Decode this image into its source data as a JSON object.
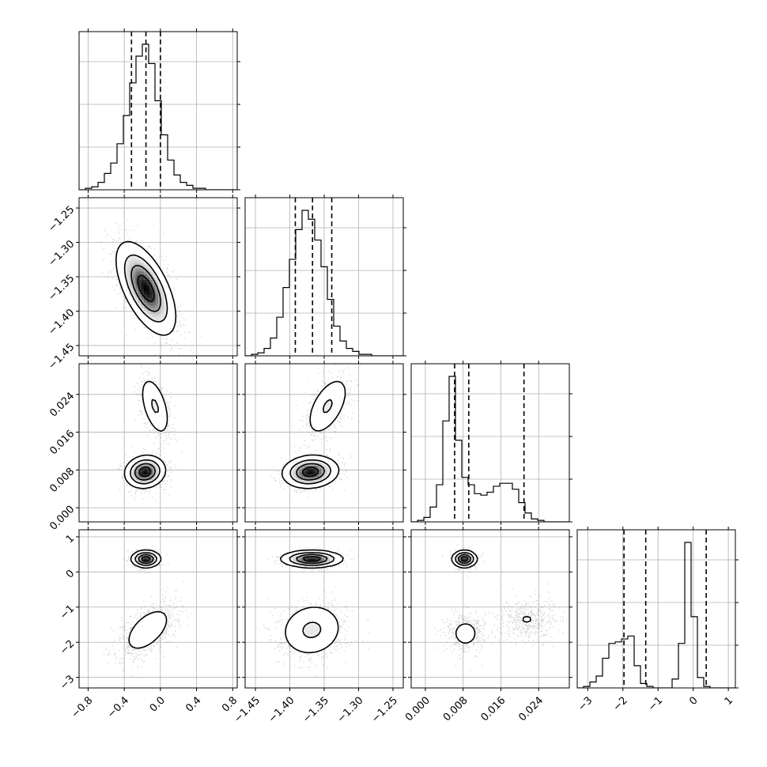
{
  "chart_data": {
    "type": "corner",
    "grid": true,
    "colors": {
      "hist": "#000000",
      "scatter": "#000000",
      "contour": "#000000",
      "density": "#000000",
      "grid": "#b0b0b0"
    },
    "parameters": [
      {
        "range": [
          -0.9,
          0.85
        ],
        "ticks": [
          -0.8,
          -0.4,
          0.0,
          0.4,
          0.8
        ],
        "tick_labels": [
          "−0.8",
          "−0.4",
          "0.0",
          "0.4",
          "0.8"
        ],
        "quantiles": [
          -0.32,
          -0.16,
          0.0
        ]
      },
      {
        "range": [
          -1.465,
          -1.235
        ],
        "ticks": [
          -1.45,
          -1.4,
          -1.35,
          -1.3,
          -1.25
        ],
        "tick_labels": [
          "−1.45",
          "−1.40",
          "−1.35",
          "−1.30",
          "−1.25"
        ],
        "quantiles": [
          -1.392,
          -1.367,
          -1.339
        ]
      },
      {
        "range": [
          -0.003,
          0.0305
        ],
        "ticks": [
          0.0,
          0.008,
          0.016,
          0.024
        ],
        "tick_labels": [
          "0.000",
          "0.008",
          "0.016",
          "0.024"
        ],
        "quantiles": [
          0.0062,
          0.0092,
          0.0209
        ]
      },
      {
        "range": [
          -3.3,
          1.2
        ],
        "ticks": [
          -3,
          -2,
          -1,
          0,
          1
        ],
        "tick_labels": [
          "−3",
          "−2",
          "−1",
          "0",
          "1"
        ],
        "quantiles": [
          -1.97,
          -1.35,
          0.37
        ]
      }
    ],
    "histograms": [
      {
        "param": 0,
        "bin_start": -0.9,
        "bin_width": 0.07,
        "values": [
          0,
          1,
          2,
          5,
          11,
          18,
          31,
          50,
          72,
          90,
          98,
          85,
          60,
          37,
          20,
          10,
          5,
          3,
          1,
          1,
          0,
          0,
          0,
          0,
          0
        ]
      },
      {
        "param": 1,
        "bin_start": -1.465,
        "bin_width": 0.0092,
        "values": [
          0,
          1,
          2,
          5,
          12,
          26,
          46,
          65,
          85,
          98,
          92,
          78,
          60,
          38,
          20,
          10,
          5,
          3,
          1,
          1,
          0,
          0,
          0,
          0,
          0
        ]
      },
      {
        "param": 2,
        "bin_start": -0.003,
        "bin_width": 0.00134,
        "values": [
          0,
          1,
          3,
          10,
          25,
          68,
          98,
          55,
          30,
          25,
          19,
          18,
          20,
          24,
          26,
          26,
          22,
          13,
          6,
          2,
          1,
          0,
          0,
          0,
          0
        ]
      },
      {
        "param": 3,
        "bin_start": -3.3,
        "bin_width": 0.18,
        "values": [
          0,
          1,
          4,
          8,
          20,
          30,
          31,
          33,
          35,
          15,
          3,
          1,
          0,
          0,
          0,
          6,
          30,
          98,
          48,
          7,
          1,
          0,
          0,
          0,
          0
        ]
      }
    ],
    "pairs": [
      {
        "x": 0,
        "y": 1,
        "components": [
          {
            "mean": [
              -0.16,
              -1.367
            ],
            "sd": [
              0.16,
              0.033
            ],
            "rho": -0.6,
            "weight": 1.0
          }
        ]
      },
      {
        "x": 0,
        "y": 2,
        "components": [
          {
            "mean": [
              -0.17,
              0.0076
            ],
            "sd": [
              0.11,
              0.0017
            ],
            "rho": 0.1,
            "weight": 0.65
          },
          {
            "mean": [
              -0.06,
              0.0215
            ],
            "sd": [
              0.09,
              0.0035
            ],
            "rho": -0.5,
            "weight": 0.35
          }
        ]
      },
      {
        "x": 0,
        "y": 3,
        "components": [
          {
            "mean": [
              -0.16,
              0.37
            ],
            "sd": [
              0.08,
              0.12
            ],
            "rho": 0.0,
            "weight": 0.4
          },
          {
            "mean": [
              -0.14,
              -1.65
            ],
            "sd": [
              0.16,
              0.4
            ],
            "rho": 0.55,
            "weight": 0.6
          }
        ]
      },
      {
        "x": 1,
        "y": 2,
        "components": [
          {
            "mean": [
              -1.37,
              0.0076
            ],
            "sd": [
              0.02,
              0.0017
            ],
            "rho": 0.1,
            "weight": 0.65
          },
          {
            "mean": [
              -1.345,
              0.0215
            ],
            "sd": [
              0.017,
              0.0035
            ],
            "rho": 0.55,
            "weight": 0.35
          }
        ]
      },
      {
        "x": 1,
        "y": 3,
        "components": [
          {
            "mean": [
              -1.368,
              0.37
            ],
            "sd": [
              0.022,
              0.12
            ],
            "rho": 0.0,
            "weight": 0.4
          },
          {
            "mean": [
              -1.368,
              -1.65
            ],
            "sd": [
              0.025,
              0.42
            ],
            "rho": 0.1,
            "weight": 0.6
          }
        ]
      },
      {
        "x": 2,
        "y": 3,
        "components": [
          {
            "mean": [
              0.0083,
              0.37
            ],
            "sd": [
              0.0013,
              0.12
            ],
            "rho": 0.0,
            "weight": 0.4
          },
          {
            "mean": [
              0.0085,
              -1.75
            ],
            "sd": [
              0.0022,
              0.3
            ],
            "rho": 0.0,
            "weight": 0.3
          },
          {
            "mean": [
              0.0215,
              -1.35
            ],
            "sd": [
              0.0032,
              0.3
            ],
            "rho": 0.0,
            "weight": 0.3
          }
        ]
      }
    ],
    "contour_levels": [
      0.12,
      0.34,
      0.6,
      0.85
    ],
    "scatter_points_per_panel": 1500
  }
}
